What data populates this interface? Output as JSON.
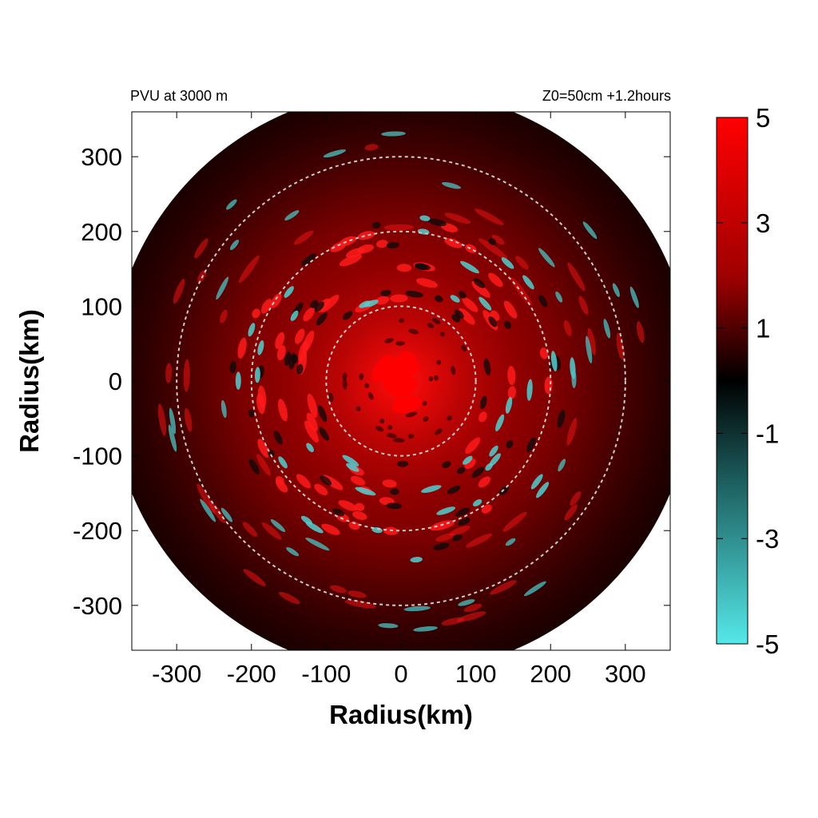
{
  "chart_data": {
    "type": "heatmap",
    "title_left": "PVU at  3000 m",
    "title_right": "Z0=50cm  +1.2hours",
    "xlabel": "Radius(km)",
    "ylabel": "Radius(km)",
    "xlim": [
      -360,
      360
    ],
    "ylim": [
      -360,
      360
    ],
    "xticks": [
      -300,
      -200,
      -100,
      0,
      100,
      200,
      300
    ],
    "yticks": [
      300,
      200,
      100,
      0,
      -100,
      -200,
      -300
    ],
    "xtick_labels": [
      "-300",
      "-200",
      "-100",
      "0",
      "100",
      "200",
      "300"
    ],
    "ytick_labels": [
      "300",
      "200",
      "100",
      "0",
      "-100",
      "-200",
      "-300"
    ],
    "reference_circles_km": [
      100,
      200,
      300
    ],
    "data_radius_km": 390,
    "colorbar": {
      "range": [
        -5,
        5
      ],
      "ticks": [
        5,
        3,
        1,
        -1,
        -3,
        -5
      ],
      "tick_labels": [
        "5",
        "3",
        "1",
        "-1",
        "-3",
        "-5"
      ],
      "colors": {
        "max": "#ff0000",
        "zero": "#000000",
        "min": "#55e8e8"
      }
    },
    "field_summary": [
      {
        "region": "core r<40 km",
        "value": 5
      },
      {
        "region": "inner ring 40-100 km",
        "value": 3
      },
      {
        "region": "ring 100-200 km",
        "value": 2.5,
        "note": "mixed with negative cyan patches near -3"
      },
      {
        "region": "outer ring 200-300 km",
        "value": 1.5,
        "note": "scattered cyan streaks near -3"
      },
      {
        "region": "edge r>300 km",
        "value": 0.3
      }
    ],
    "grid": false,
    "legend": "colorbar-right"
  }
}
